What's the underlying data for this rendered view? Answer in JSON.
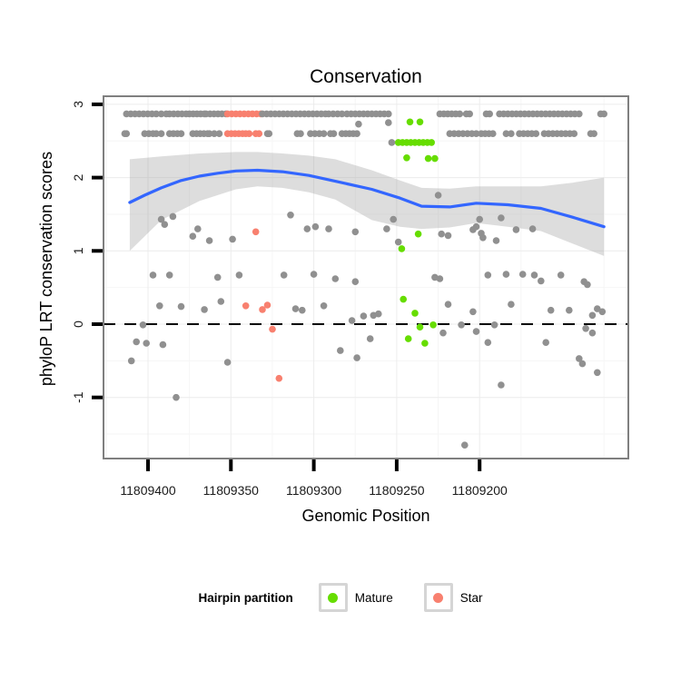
{
  "title": "Conservation",
  "axes": {
    "x": {
      "title": "Genomic Position",
      "tick_labels": [
        "11809400",
        "11809350",
        "11809300",
        "11809250",
        "11809200"
      ],
      "tick_values": [
        11809400,
        11809350,
        11809300,
        11809250,
        11809200
      ]
    },
    "y": {
      "title": "phyloP LRT conservation scores",
      "tick_labels": [
        "3",
        "2",
        "1",
        "0",
        "-1"
      ],
      "tick_values": [
        3,
        2,
        1,
        0,
        -1
      ]
    }
  },
  "legend": {
    "title": "Hairpin partition",
    "items": [
      {
        "label": "Mature",
        "color": "#66DD00"
      },
      {
        "label": "Star",
        "color": "#F8806F"
      }
    ]
  },
  "chart_data": {
    "type": "scatter",
    "title": "Conservation",
    "xlabel": "Genomic Position",
    "ylabel": "phyloP LRT conservation scores",
    "x_reversed": true,
    "xlim": [
      11809427,
      11809110
    ],
    "ylim": [
      -1.83,
      3.11
    ],
    "zero_line": 0,
    "grid": "faint major+minor",
    "legend_position": "bottom",
    "colors": {
      "other": "#909090",
      "mature": "#66DD00",
      "star": "#F8806F",
      "smooth": "#3366FF",
      "band": "#9e9e9e",
      "zero_line": "#000000"
    },
    "series": [
      {
        "name": "other",
        "color_key": "other",
        "points": [
          [
            11809392,
            1.43
          ],
          [
            11809390,
            1.36
          ],
          [
            11809385,
            1.47
          ],
          [
            11809373,
            1.2
          ],
          [
            11809370,
            1.3
          ],
          [
            11809363,
            1.14
          ],
          [
            11809349,
            1.16
          ],
          [
            11809314,
            1.49
          ],
          [
            11809304,
            1.3
          ],
          [
            11809299,
            1.33
          ],
          [
            11809291,
            1.3
          ],
          [
            11809275,
            1.26
          ],
          [
            11809256,
            1.3
          ],
          [
            11809252,
            1.43
          ],
          [
            11809249,
            1.12
          ],
          [
            11809225,
            1.76
          ],
          [
            11809223,
            1.23
          ],
          [
            11809219,
            1.21
          ],
          [
            11809204,
            1.29
          ],
          [
            11809202,
            1.33
          ],
          [
            11809200,
            1.43
          ],
          [
            11809199,
            1.24
          ],
          [
            11809198,
            1.18
          ],
          [
            11809190,
            1.14
          ],
          [
            11809187,
            1.45
          ],
          [
            11809178,
            1.29
          ],
          [
            11809168,
            1.3
          ],
          [
            11809397,
            0.67
          ],
          [
            11809387,
            0.67
          ],
          [
            11809358,
            0.64
          ],
          [
            11809345,
            0.67
          ],
          [
            11809318,
            0.67
          ],
          [
            11809300,
            0.68
          ],
          [
            11809287,
            0.62
          ],
          [
            11809275,
            0.58
          ],
          [
            11809227,
            0.64
          ],
          [
            11809224,
            0.62
          ],
          [
            11809195,
            0.67
          ],
          [
            11809184,
            0.68
          ],
          [
            11809174,
            0.68
          ],
          [
            11809167,
            0.67
          ],
          [
            11809163,
            0.59
          ],
          [
            11809151,
            0.67
          ],
          [
            11809137,
            0.58
          ],
          [
            11809135,
            0.54
          ],
          [
            11809393,
            0.25
          ],
          [
            11809380,
            0.24
          ],
          [
            11809366,
            0.2
          ],
          [
            11809356,
            0.31
          ],
          [
            11809403,
            -0.01
          ],
          [
            11809311,
            0.21
          ],
          [
            11809307,
            0.19
          ],
          [
            11809294,
            0.25
          ],
          [
            11809277,
            0.05
          ],
          [
            11809270,
            0.11
          ],
          [
            11809264,
            0.12
          ],
          [
            11809261,
            0.14
          ],
          [
            11809219,
            0.27
          ],
          [
            11809211,
            -0.01
          ],
          [
            11809204,
            0.17
          ],
          [
            11809181,
            0.27
          ],
          [
            11809157,
            0.19
          ],
          [
            11809146,
            0.19
          ],
          [
            11809132,
            0.12
          ],
          [
            11809129,
            0.21
          ],
          [
            11809126,
            0.17
          ],
          [
            11809407,
            -0.24
          ],
          [
            11809401,
            -0.26
          ],
          [
            11809391,
            -0.28
          ],
          [
            11809410,
            -0.5
          ],
          [
            11809383,
            -1.0
          ],
          [
            11809352,
            -0.52
          ],
          [
            11809284,
            -0.36
          ],
          [
            11809274,
            -0.46
          ],
          [
            11809266,
            -0.2
          ],
          [
            11809222,
            -0.12
          ],
          [
            11809202,
            -0.1
          ],
          [
            11809195,
            -0.25
          ],
          [
            11809191,
            -0.01
          ],
          [
            11809160,
            -0.25
          ],
          [
            11809140,
            -0.47
          ],
          [
            11809138,
            -0.54
          ],
          [
            11809136,
            -0.06
          ],
          [
            11809132,
            -0.12
          ],
          [
            11809129,
            -0.66
          ],
          [
            11809187,
            -0.83
          ],
          [
            11809209,
            -1.65
          ],
          [
            11809273,
            2.73
          ],
          [
            11809255,
            2.75
          ],
          [
            11809253,
            2.48
          ]
        ]
      },
      {
        "name": "Mature",
        "color_key": "mature",
        "points": [
          [
            11809242,
            2.76
          ],
          [
            11809236,
            2.76
          ],
          [
            11809244,
            2.27
          ],
          [
            11809231,
            2.26
          ],
          [
            11809227,
            2.26
          ],
          [
            11809247,
            1.03
          ],
          [
            11809237,
            1.23
          ],
          [
            11809246,
            0.34
          ],
          [
            11809239,
            0.15
          ],
          [
            11809236,
            -0.04
          ],
          [
            11809228,
            -0.01
          ],
          [
            11809243,
            -0.2
          ],
          [
            11809233,
            -0.26
          ]
        ]
      },
      {
        "name": "Star",
        "color_key": "star",
        "points": [
          [
            11809335,
            1.26
          ],
          [
            11809341,
            0.25
          ],
          [
            11809331,
            0.2
          ],
          [
            11809328,
            0.26
          ],
          [
            11809325,
            -0.07
          ],
          [
            11809321,
            -0.74
          ]
        ]
      }
    ],
    "dense_rows": [
      {
        "y": 2.87,
        "segments": [
          {
            "color_key": "other",
            "from": 11809413,
            "to": 11809395
          },
          {
            "color_key": "other",
            "from": 11809392,
            "to": 11809389
          },
          {
            "color_key": "other",
            "from": 11809387,
            "to": 11809377
          },
          {
            "color_key": "other",
            "from": 11809375,
            "to": 11809366
          },
          {
            "color_key": "other",
            "from": 11809365,
            "to": 11809353
          },
          {
            "color_key": "star",
            "from": 11809352,
            "to": 11809332
          },
          {
            "color_key": "other",
            "from": 11809331,
            "to": 11809293
          },
          {
            "color_key": "other",
            "from": 11809291,
            "to": 11809283
          },
          {
            "color_key": "other",
            "from": 11809280,
            "to": 11809255
          },
          {
            "color_key": "other",
            "from": 11809224,
            "to": 11809212
          },
          {
            "color_key": "other",
            "from": 11809208,
            "to": 11809206
          },
          {
            "color_key": "other",
            "from": 11809196,
            "to": 11809194
          },
          {
            "color_key": "other",
            "from": 11809188,
            "to": 11809140
          },
          {
            "color_key": "other",
            "from": 11809127,
            "to": 11809125
          }
        ]
      },
      {
        "y": 2.6,
        "segments": [
          {
            "color_key": "other",
            "from": 11809414,
            "to": 11809413
          },
          {
            "color_key": "other",
            "from": 11809402,
            "to": 11809397
          },
          {
            "color_key": "other",
            "from": 11809395,
            "to": 11809392
          },
          {
            "color_key": "other",
            "from": 11809387,
            "to": 11809380
          },
          {
            "color_key": "other",
            "from": 11809373,
            "to": 11809364
          },
          {
            "color_key": "other",
            "from": 11809363,
            "to": 11809357
          },
          {
            "color_key": "star",
            "from": 11809352,
            "to": 11809343
          },
          {
            "color_key": "star",
            "from": 11809341,
            "to": 11809339
          },
          {
            "color_key": "star",
            "from": 11809335,
            "to": 11809333
          },
          {
            "color_key": "other",
            "from": 11809328,
            "to": 11809327
          },
          {
            "color_key": "other",
            "from": 11809310,
            "to": 11809308
          },
          {
            "color_key": "other",
            "from": 11809302,
            "to": 11809294
          },
          {
            "color_key": "other",
            "from": 11809290,
            "to": 11809288
          },
          {
            "color_key": "other",
            "from": 11809283,
            "to": 11809274
          },
          {
            "color_key": "other",
            "from": 11809218,
            "to": 11809202
          },
          {
            "color_key": "other",
            "from": 11809199,
            "to": 11809192
          },
          {
            "color_key": "other",
            "from": 11809184,
            "to": 11809181
          },
          {
            "color_key": "other",
            "from": 11809176,
            "to": 11809166
          },
          {
            "color_key": "other",
            "from": 11809161,
            "to": 11809143
          },
          {
            "color_key": "other",
            "from": 11809133,
            "to": 11809131
          }
        ]
      },
      {
        "y": 2.48,
        "segments": [
          {
            "color_key": "mature",
            "from": 11809249,
            "to": 11809229
          }
        ]
      }
    ],
    "smooth_line": [
      [
        11809411,
        1.66
      ],
      [
        11809402,
        1.76
      ],
      [
        11809392,
        1.86
      ],
      [
        11809380,
        1.96
      ],
      [
        11809369,
        2.02
      ],
      [
        11809358,
        2.06
      ],
      [
        11809347,
        2.09
      ],
      [
        11809334,
        2.1
      ],
      [
        11809319,
        2.08
      ],
      [
        11809303,
        2.03
      ],
      [
        11809287,
        1.95
      ],
      [
        11809265,
        1.84
      ],
      [
        11809248,
        1.72
      ],
      [
        11809235,
        1.61
      ],
      [
        11809218,
        1.6
      ],
      [
        11809202,
        1.65
      ],
      [
        11809183,
        1.63
      ],
      [
        11809163,
        1.58
      ],
      [
        11809144,
        1.46
      ],
      [
        11809125,
        1.33
      ]
    ],
    "confidence_band": [
      [
        11809411,
        2.25,
        1.0
      ],
      [
        11809392,
        2.29,
        1.42
      ],
      [
        11809369,
        2.33,
        1.68
      ],
      [
        11809347,
        2.35,
        1.84
      ],
      [
        11809334,
        2.35,
        1.88
      ],
      [
        11809319,
        2.33,
        1.86
      ],
      [
        11809303,
        2.3,
        1.8
      ],
      [
        11809287,
        2.25,
        1.7
      ],
      [
        11809265,
        2.1,
        1.42
      ],
      [
        11809248,
        1.96,
        1.33
      ],
      [
        11809235,
        1.86,
        1.3
      ],
      [
        11809218,
        1.85,
        1.32
      ],
      [
        11809202,
        1.88,
        1.38
      ],
      [
        11809183,
        1.88,
        1.33
      ],
      [
        11809163,
        1.88,
        1.27
      ],
      [
        11809144,
        1.93,
        1.1
      ],
      [
        11809125,
        2.0,
        0.93
      ]
    ]
  }
}
